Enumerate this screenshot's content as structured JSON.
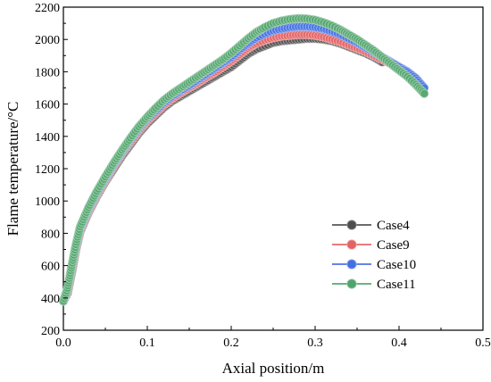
{
  "chart_data": {
    "type": "scatter",
    "xlabel": "Axial position/m",
    "ylabel": "Flame temperature/°C",
    "xlim": [
      0.0,
      0.5
    ],
    "ylim": [
      200,
      2200
    ],
    "xticks": [
      "0.0",
      "0.1",
      "0.2",
      "0.3",
      "0.4",
      "0.5"
    ],
    "yticks": [
      "200",
      "400",
      "600",
      "800",
      "1000",
      "1200",
      "1400",
      "1600",
      "1800",
      "2000",
      "2200"
    ],
    "grid": false,
    "legend_position": "lower-right",
    "series": [
      {
        "name": "Case4",
        "color": "#3a3a3a",
        "points": [
          [
            0.0,
            380
          ],
          [
            0.005,
            430
          ],
          [
            0.01,
            560
          ],
          [
            0.015,
            700
          ],
          [
            0.02,
            810
          ],
          [
            0.03,
            930
          ],
          [
            0.04,
            1030
          ],
          [
            0.05,
            1120
          ],
          [
            0.06,
            1200
          ],
          [
            0.07,
            1280
          ],
          [
            0.08,
            1350
          ],
          [
            0.09,
            1420
          ],
          [
            0.1,
            1480
          ],
          [
            0.11,
            1530
          ],
          [
            0.12,
            1580
          ],
          [
            0.13,
            1620
          ],
          [
            0.14,
            1650
          ],
          [
            0.15,
            1680
          ],
          [
            0.16,
            1710
          ],
          [
            0.17,
            1740
          ],
          [
            0.18,
            1770
          ],
          [
            0.19,
            1800
          ],
          [
            0.2,
            1830
          ],
          [
            0.21,
            1870
          ],
          [
            0.22,
            1910
          ],
          [
            0.23,
            1940
          ],
          [
            0.24,
            1960
          ],
          [
            0.25,
            1980
          ],
          [
            0.26,
            1990
          ],
          [
            0.27,
            1995
          ],
          [
            0.28,
            2000
          ],
          [
            0.29,
            2005
          ],
          [
            0.3,
            2005
          ],
          [
            0.31,
            2000
          ],
          [
            0.32,
            1990
          ],
          [
            0.33,
            1975
          ],
          [
            0.34,
            1955
          ],
          [
            0.35,
            1935
          ],
          [
            0.36,
            1915
          ],
          [
            0.37,
            1890
          ],
          [
            0.38,
            1860
          ]
        ]
      },
      {
        "name": "Case9",
        "color": "#e05050",
        "points": [
          [
            0.0,
            380
          ],
          [
            0.005,
            440
          ],
          [
            0.01,
            580
          ],
          [
            0.015,
            710
          ],
          [
            0.02,
            820
          ],
          [
            0.03,
            940
          ],
          [
            0.04,
            1040
          ],
          [
            0.05,
            1130
          ],
          [
            0.06,
            1215
          ],
          [
            0.07,
            1295
          ],
          [
            0.08,
            1365
          ],
          [
            0.09,
            1435
          ],
          [
            0.1,
            1495
          ],
          [
            0.11,
            1545
          ],
          [
            0.12,
            1595
          ],
          [
            0.13,
            1635
          ],
          [
            0.14,
            1670
          ],
          [
            0.15,
            1700
          ],
          [
            0.16,
            1730
          ],
          [
            0.17,
            1765
          ],
          [
            0.18,
            1795
          ],
          [
            0.19,
            1830
          ],
          [
            0.2,
            1865
          ],
          [
            0.21,
            1905
          ],
          [
            0.22,
            1945
          ],
          [
            0.23,
            1975
          ],
          [
            0.24,
            1995
          ],
          [
            0.25,
            2010
          ],
          [
            0.26,
            2020
          ],
          [
            0.27,
            2025
          ],
          [
            0.28,
            2030
          ],
          [
            0.29,
            2030
          ],
          [
            0.3,
            2025
          ],
          [
            0.31,
            2015
          ],
          [
            0.32,
            2000
          ],
          [
            0.33,
            1985
          ],
          [
            0.34,
            1965
          ],
          [
            0.35,
            1945
          ],
          [
            0.36,
            1925
          ],
          [
            0.37,
            1900
          ],
          [
            0.38,
            1875
          ],
          [
            0.39,
            1850
          ]
        ]
      },
      {
        "name": "Case10",
        "color": "#2f5fe0",
        "points": [
          [
            0.0,
            380
          ],
          [
            0.005,
            450
          ],
          [
            0.01,
            590
          ],
          [
            0.015,
            720
          ],
          [
            0.02,
            830
          ],
          [
            0.03,
            950
          ],
          [
            0.04,
            1050
          ],
          [
            0.05,
            1140
          ],
          [
            0.06,
            1225
          ],
          [
            0.07,
            1305
          ],
          [
            0.08,
            1380
          ],
          [
            0.09,
            1450
          ],
          [
            0.1,
            1510
          ],
          [
            0.11,
            1560
          ],
          [
            0.12,
            1610
          ],
          [
            0.13,
            1650
          ],
          [
            0.14,
            1685
          ],
          [
            0.15,
            1715
          ],
          [
            0.16,
            1750
          ],
          [
            0.17,
            1785
          ],
          [
            0.18,
            1820
          ],
          [
            0.19,
            1855
          ],
          [
            0.2,
            1890
          ],
          [
            0.21,
            1935
          ],
          [
            0.22,
            1975
          ],
          [
            0.23,
            2010
          ],
          [
            0.24,
            2035
          ],
          [
            0.25,
            2055
          ],
          [
            0.26,
            2065
          ],
          [
            0.27,
            2075
          ],
          [
            0.28,
            2080
          ],
          [
            0.29,
            2080
          ],
          [
            0.3,
            2075
          ],
          [
            0.31,
            2065
          ],
          [
            0.32,
            2050
          ],
          [
            0.33,
            2030
          ],
          [
            0.34,
            2005
          ],
          [
            0.35,
            1980
          ],
          [
            0.36,
            1950
          ],
          [
            0.37,
            1920
          ],
          [
            0.38,
            1890
          ],
          [
            0.39,
            1860
          ],
          [
            0.4,
            1830
          ],
          [
            0.41,
            1800
          ],
          [
            0.42,
            1760
          ],
          [
            0.43,
            1700
          ]
        ]
      },
      {
        "name": "Case11",
        "color": "#3c9a5a",
        "points": [
          [
            0.0,
            380
          ],
          [
            0.005,
            460
          ],
          [
            0.01,
            600
          ],
          [
            0.015,
            730
          ],
          [
            0.02,
            840
          ],
          [
            0.03,
            960
          ],
          [
            0.04,
            1060
          ],
          [
            0.05,
            1150
          ],
          [
            0.06,
            1235
          ],
          [
            0.07,
            1315
          ],
          [
            0.08,
            1390
          ],
          [
            0.09,
            1460
          ],
          [
            0.1,
            1520
          ],
          [
            0.11,
            1575
          ],
          [
            0.12,
            1625
          ],
          [
            0.13,
            1665
          ],
          [
            0.14,
            1700
          ],
          [
            0.15,
            1735
          ],
          [
            0.16,
            1770
          ],
          [
            0.17,
            1805
          ],
          [
            0.18,
            1840
          ],
          [
            0.19,
            1875
          ],
          [
            0.2,
            1915
          ],
          [
            0.21,
            1960
          ],
          [
            0.22,
            2005
          ],
          [
            0.23,
            2045
          ],
          [
            0.24,
            2075
          ],
          [
            0.25,
            2100
          ],
          [
            0.26,
            2115
          ],
          [
            0.27,
            2125
          ],
          [
            0.28,
            2130
          ],
          [
            0.29,
            2128
          ],
          [
            0.3,
            2120
          ],
          [
            0.31,
            2105
          ],
          [
            0.32,
            2085
          ],
          [
            0.33,
            2060
          ],
          [
            0.34,
            2030
          ],
          [
            0.35,
            2000
          ],
          [
            0.36,
            1965
          ],
          [
            0.37,
            1930
          ],
          [
            0.38,
            1890
          ],
          [
            0.39,
            1850
          ],
          [
            0.4,
            1810
          ],
          [
            0.41,
            1770
          ],
          [
            0.42,
            1720
          ],
          [
            0.43,
            1665
          ]
        ]
      }
    ]
  }
}
